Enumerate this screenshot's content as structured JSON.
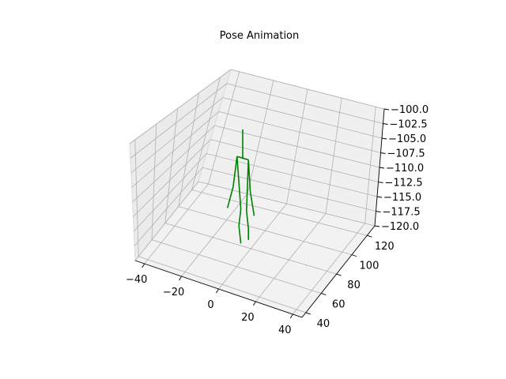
{
  "chart_data": {
    "type": "line",
    "title": "Pose Animation",
    "xlabel": "",
    "ylabel": "",
    "zlabel": "",
    "x_ticks": [
      "−40",
      "−20",
      "0",
      "20",
      "40"
    ],
    "y_ticks": [
      "40",
      "60",
      "80",
      "100",
      "120"
    ],
    "z_ticks": [
      "−100.0",
      "−102.5",
      "−105.0",
      "−107.5",
      "−110.0",
      "−112.5",
      "−115.0",
      "−117.5",
      "−120.0"
    ],
    "xlim": [
      -45,
      45
    ],
    "ylim": [
      35,
      130
    ],
    "zlim": [
      -120,
      -100
    ],
    "grid": true,
    "series": [
      {
        "color": "#008000",
        "segments": [
          {
            "points": [
              [
                -5,
                82,
                -100.0
              ],
              [
                -5,
                82,
                -105.0
              ]
            ]
          },
          {
            "points": [
              [
                -8,
                82,
                -105.0
              ],
              [
                -5,
                82,
                -105.0
              ],
              [
                -2,
                82,
                -105.0
              ]
            ]
          },
          {
            "points": [
              [
                -8,
                82,
                -105.0
              ],
              [
                -10,
                82,
                -110.5
              ],
              [
                -13,
                82,
                -114.5
              ]
            ]
          },
          {
            "points": [
              [
                -2,
                82,
                -105.0
              ],
              [
                -1,
                82,
                -110.5
              ],
              [
                1,
                82,
                -114.5
              ]
            ]
          },
          {
            "points": [
              [
                -8,
                82,
                -105.0
              ],
              [
                -6,
                82,
                -114.0
              ],
              [
                -7,
                82,
                -117.0
              ],
              [
                -6,
                82,
                -120.0
              ]
            ]
          },
          {
            "points": [
              [
                -2,
                82,
                -105.0
              ],
              [
                -3,
                82,
                -114.0
              ],
              [
                -2,
                82,
                -117.0
              ],
              [
                -2,
                82,
                -119.0
              ]
            ]
          }
        ]
      }
    ]
  }
}
